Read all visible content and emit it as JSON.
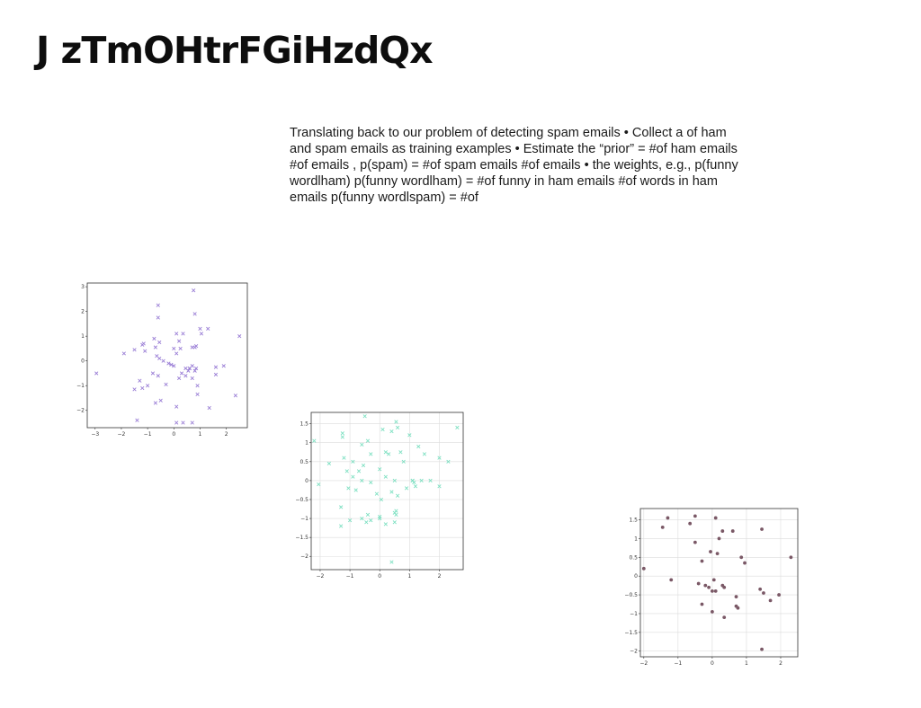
{
  "title": "J zTmOHtrFGiHzdQx",
  "body_text": "Translating back to our problem of detecting spam emails • Collect a of ham and spam emails as training examples • Estimate the “prior” = #of ham emails #of emails , p(spam) = #of spam emails #of emails • the weights, e.g., p(funny wordlham) p(funny wordlham) = #of funny in ham emails #of words in ham emails p(funny wordlspam) = #of",
  "chart_data": [
    {
      "type": "scatter",
      "marker": "x",
      "color": "#9b7fd6",
      "grid": false,
      "xlim": [
        -3.3,
        2.8
      ],
      "ylim": [
        -2.7,
        3.15
      ],
      "xticks": [
        -3,
        -2,
        -1,
        0,
        1,
        2
      ],
      "yticks": [
        -2,
        -1,
        0,
        1,
        2,
        3
      ],
      "x": [
        0.75,
        -0.6,
        -0.6,
        0.8,
        2.5,
        -1.15,
        -0.55,
        0.1,
        0.2,
        0.35,
        0.7,
        0.85,
        1.0,
        1.3,
        -1.2,
        -1.5,
        -1.9,
        -1.1,
        -0.7,
        -0.55,
        -0.4,
        -0.2,
        0.0,
        0.1,
        0.25,
        0.45,
        0.55,
        0.7,
        0.8,
        0.85,
        1.05,
        -2.95,
        -1.2,
        -1.3,
        -1.5,
        -1.0,
        -0.8,
        -0.6,
        -0.3,
        -0.1,
        0.3,
        0.45,
        0.6,
        0.7,
        0.9,
        1.6,
        1.9,
        2.35,
        -0.7,
        -0.5,
        0.1,
        0.9,
        1.35,
        -1.4,
        -0.65,
        0.1,
        0.35,
        0.7,
        0.2,
        0.6,
        0.0,
        -0.75,
        0.8,
        1.6
      ],
      "y": [
        2.85,
        2.25,
        1.75,
        1.9,
        1.0,
        0.7,
        0.75,
        1.1,
        0.8,
        1.1,
        0.55,
        0.6,
        1.3,
        1.3,
        0.65,
        0.45,
        0.3,
        0.4,
        0.55,
        0.1,
        0.0,
        -0.1,
        -0.2,
        0.3,
        0.5,
        -0.3,
        -0.4,
        -0.2,
        -0.4,
        -0.3,
        1.1,
        -0.5,
        -1.1,
        -0.8,
        -1.15,
        -1.0,
        -0.5,
        -0.6,
        -0.95,
        -0.15,
        -0.5,
        -0.6,
        -0.3,
        -0.7,
        -1.0,
        -0.25,
        -0.2,
        -1.4,
        -1.7,
        -1.6,
        -1.85,
        -1.35,
        -1.9,
        -2.4,
        0.2,
        -2.5,
        -2.5,
        -2.5,
        -0.7,
        -0.3,
        0.5,
        0.9,
        0.55,
        -0.55
      ]
    },
    {
      "type": "scatter",
      "marker": "x",
      "color": "#7ee0c2",
      "grid": true,
      "xlim": [
        -2.3,
        2.8
      ],
      "ylim": [
        -2.35,
        1.8
      ],
      "xticks": [
        -2,
        -1,
        0,
        1,
        2
      ],
      "yticks": [
        -2.0,
        -1.5,
        -1.0,
        -0.5,
        0.0,
        0.5,
        1.0,
        1.5
      ],
      "x": [
        -0.5,
        0.55,
        0.6,
        -1.25,
        -1.25,
        -0.6,
        -0.4,
        0.1,
        0.4,
        0.7,
        1.0,
        1.3,
        2.6,
        -2.2,
        -1.7,
        -1.2,
        -1.1,
        -0.9,
        -0.7,
        -0.55,
        -0.3,
        0.0,
        0.2,
        0.3,
        0.5,
        0.8,
        1.1,
        1.5,
        2.0,
        2.3,
        -2.05,
        -1.05,
        -0.9,
        -0.6,
        -0.3,
        -0.1,
        0.2,
        0.4,
        0.6,
        0.9,
        1.2,
        1.4,
        1.7,
        2.0,
        -1.3,
        -1.0,
        -0.6,
        -0.4,
        0.0,
        0.2,
        0.5,
        0.55,
        -1.3,
        -0.45,
        -0.3,
        0.0,
        0.5,
        0.55,
        1.1,
        1.15,
        0.05,
        0.4,
        -0.8
      ],
      "y": [
        1.7,
        1.55,
        1.4,
        1.25,
        1.15,
        0.95,
        1.05,
        1.35,
        1.3,
        0.75,
        1.2,
        0.9,
        1.4,
        1.05,
        0.45,
        0.6,
        0.25,
        0.5,
        0.25,
        0.4,
        0.7,
        0.3,
        0.75,
        0.7,
        0.0,
        0.5,
        0.0,
        0.7,
        -0.15,
        0.5,
        -0.1,
        -0.2,
        0.1,
        0.0,
        -0.05,
        -0.35,
        0.1,
        -0.3,
        -0.4,
        -0.2,
        -0.15,
        0.0,
        0.0,
        0.6,
        -0.7,
        -1.05,
        -1.0,
        -0.9,
        -0.95,
        -1.15,
        -1.1,
        -0.8,
        -1.2,
        -1.1,
        -1.05,
        -1.0,
        -0.85,
        -0.9,
        0.0,
        -0.05,
        -0.5,
        -2.15,
        -0.25
      ]
    },
    {
      "type": "scatter",
      "marker": "o",
      "color": "#7a5866",
      "grid": true,
      "xlim": [
        -2.1,
        2.5
      ],
      "ylim": [
        -2.15,
        1.8
      ],
      "xticks": [
        -2,
        -1,
        0,
        1,
        2
      ],
      "yticks": [
        -2.0,
        -1.5,
        -1.0,
        -0.5,
        0.0,
        0.5,
        1.0,
        1.5
      ],
      "x": [
        -1.3,
        -0.5,
        0.1,
        -1.45,
        -0.65,
        0.2,
        0.6,
        0.3,
        1.45,
        2.3,
        -0.5,
        -0.05,
        0.15,
        0.85,
        0.95,
        -1.2,
        -0.3,
        -0.4,
        -0.2,
        -0.1,
        0.1,
        0.3,
        0.35,
        -2.0,
        0.7,
        1.4,
        1.5,
        1.7,
        1.95,
        0.7,
        0.0,
        0.05,
        0.75,
        0.35,
        0.0,
        -0.3,
        1.45
      ],
      "y": [
        1.55,
        1.6,
        1.55,
        1.3,
        1.4,
        1.0,
        1.2,
        1.2,
        1.25,
        0.5,
        0.9,
        0.65,
        0.6,
        0.5,
        0.35,
        -0.1,
        0.4,
        -0.2,
        -0.25,
        -0.3,
        -0.4,
        -0.25,
        -0.3,
        0.2,
        -0.55,
        -0.35,
        -0.45,
        -0.65,
        -0.5,
        -0.8,
        -0.95,
        -0.1,
        -0.85,
        -1.1,
        -0.4,
        -0.75,
        -1.95
      ]
    }
  ]
}
